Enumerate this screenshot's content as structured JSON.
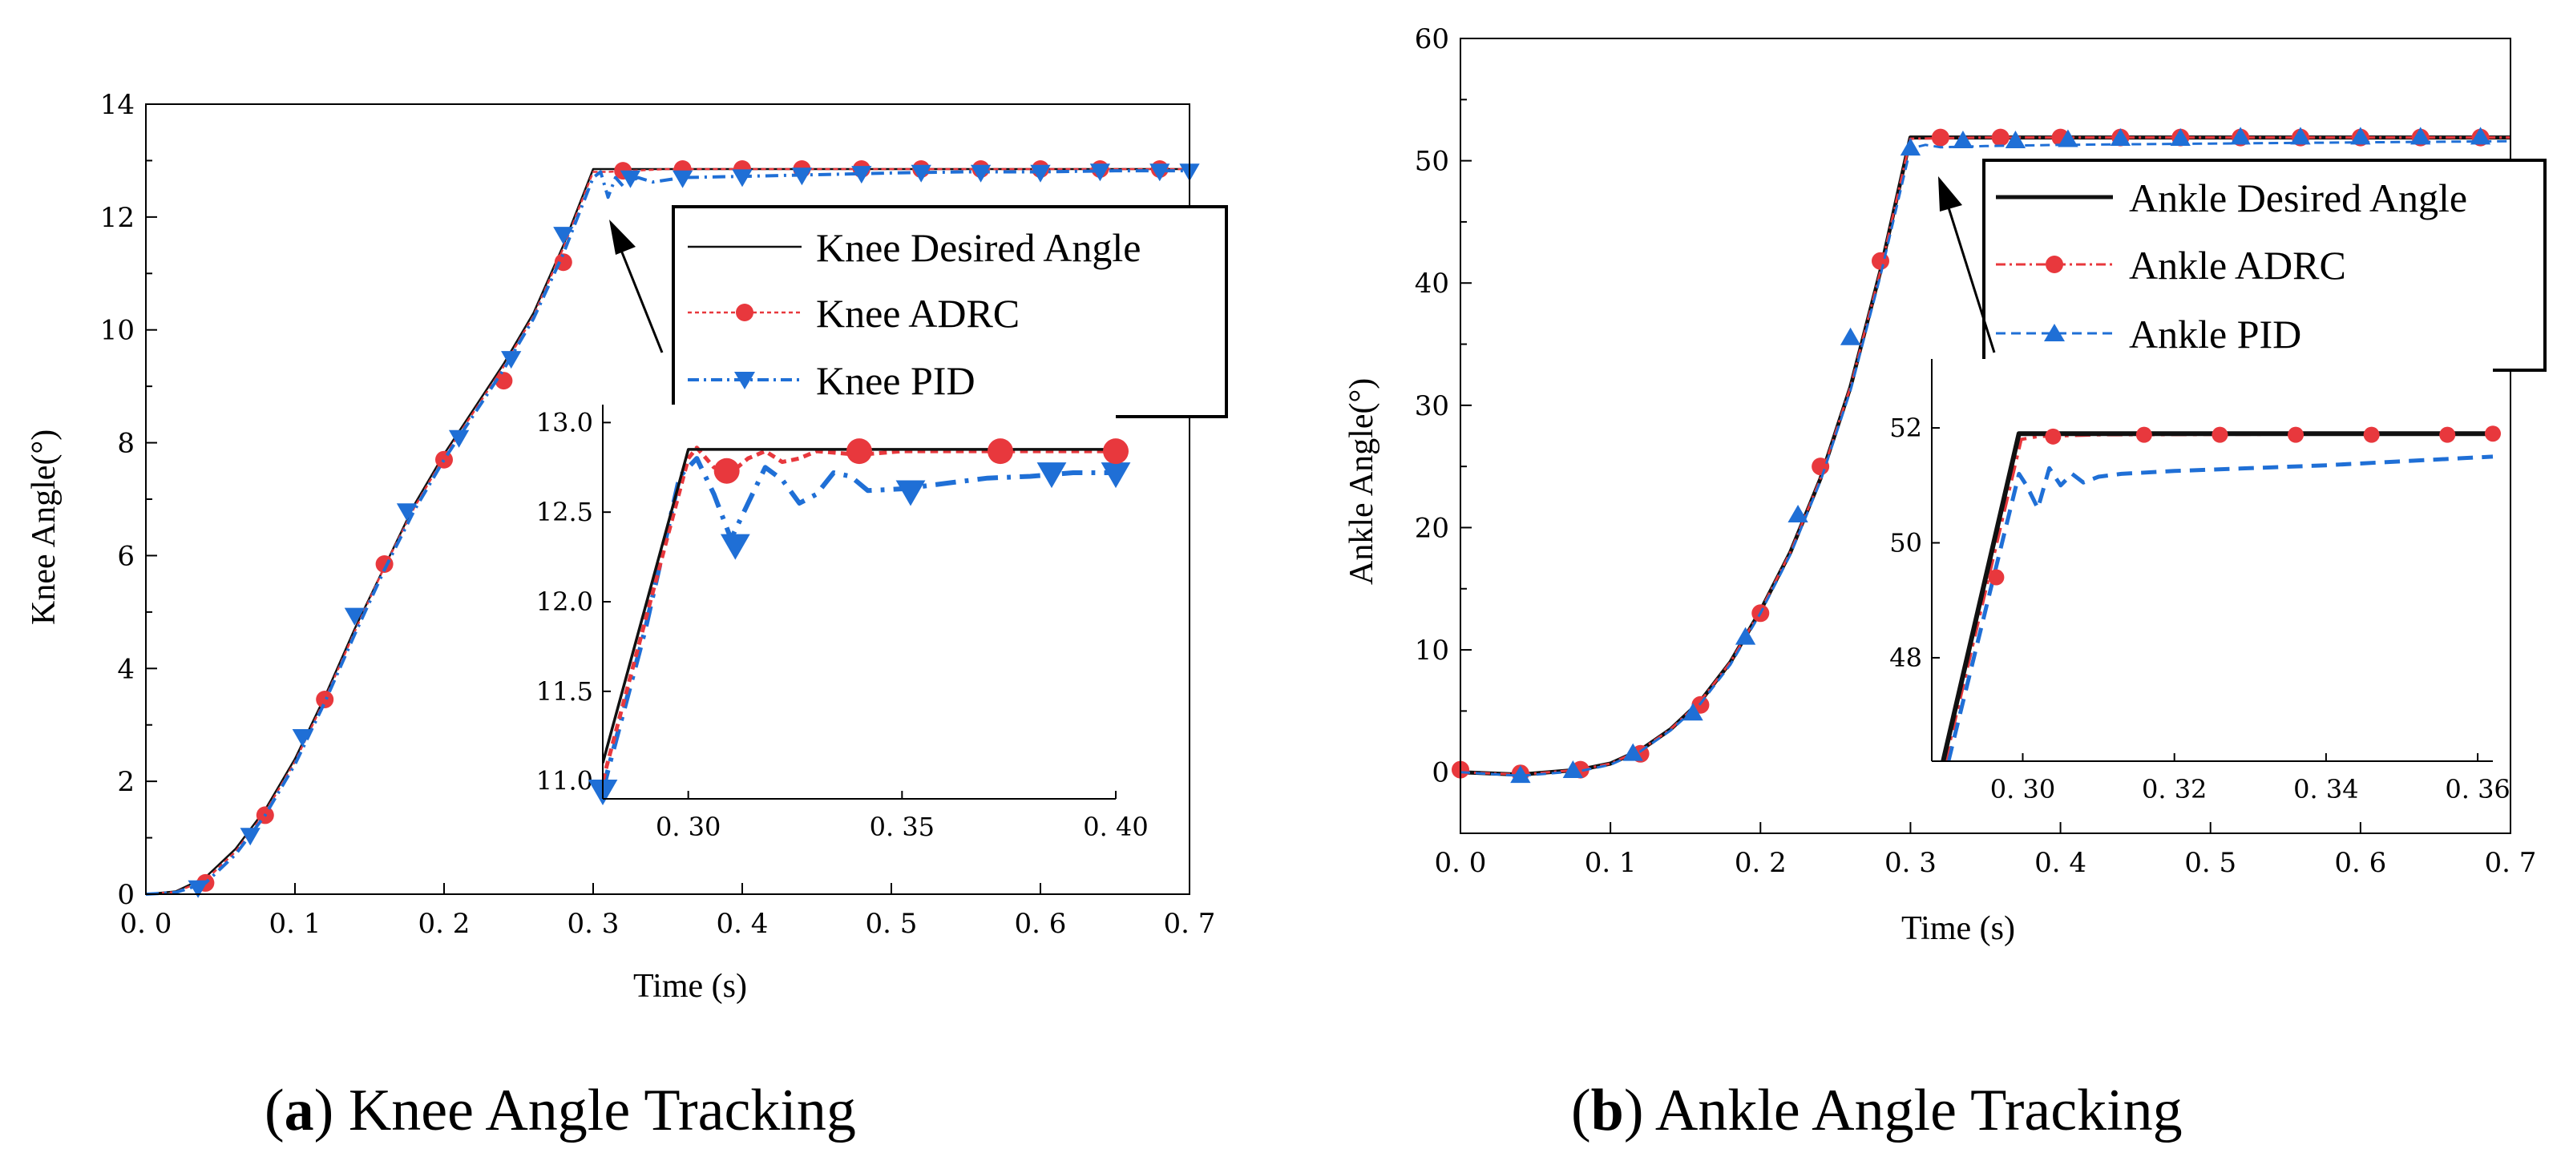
{
  "colors": {
    "desired": "#111111",
    "adrc": "#e8383d",
    "pid": "#1f6fd6"
  },
  "chart_data": [
    {
      "id": "a",
      "type": "line",
      "caption_letter": "a",
      "caption_text": "Knee Angle Tracking",
      "xlabel": "Time (s)",
      "ylabel": "Knee Angle(°)",
      "xlim": [
        0,
        0.7
      ],
      "ylim": [
        0,
        14
      ],
      "xticks": [
        0,
        0.1,
        0.2,
        0.3,
        0.4,
        0.5,
        0.6,
        0.7
      ],
      "xtick_labels": [
        "0.0",
        "0.1",
        "0.2",
        "0.3",
        "0.4",
        "0.5",
        "0.6",
        "0.7"
      ],
      "yticks": [
        0,
        2,
        4,
        6,
        8,
        10,
        12,
        14
      ],
      "ytick_labels": [
        "0",
        "2",
        "4",
        "6",
        "8",
        "10",
        "12",
        "14"
      ],
      "legend": [
        "Knee Desired Angle",
        "Knee ADRC",
        "Knee PID"
      ],
      "series": [
        {
          "name": "Knee Desired Angle",
          "style": "solid",
          "marker": "none",
          "x": [
            0,
            0.02,
            0.04,
            0.06,
            0.08,
            0.1,
            0.12,
            0.14,
            0.16,
            0.18,
            0.2,
            0.22,
            0.24,
            0.26,
            0.28,
            0.3,
            0.35,
            0.4,
            0.45,
            0.5,
            0.55,
            0.6,
            0.65,
            0.7
          ],
          "y": [
            0,
            0.05,
            0.3,
            0.8,
            1.5,
            2.4,
            3.5,
            4.7,
            5.8,
            6.9,
            7.8,
            8.6,
            9.4,
            10.3,
            11.5,
            12.85,
            12.85,
            12.85,
            12.85,
            12.85,
            12.85,
            12.85,
            12.85,
            12.85
          ]
        },
        {
          "name": "Knee ADRC",
          "style": "dotted",
          "marker": "circle",
          "x": [
            0,
            0.02,
            0.04,
            0.06,
            0.08,
            0.1,
            0.12,
            0.14,
            0.16,
            0.18,
            0.2,
            0.22,
            0.24,
            0.26,
            0.28,
            0.3,
            0.31,
            0.35,
            0.4,
            0.45,
            0.5,
            0.55,
            0.6,
            0.65,
            0.7
          ],
          "y": [
            0,
            0.04,
            0.25,
            0.75,
            1.45,
            2.35,
            3.45,
            4.65,
            5.8,
            6.85,
            7.75,
            8.55,
            9.35,
            10.25,
            11.45,
            12.8,
            12.8,
            12.85,
            12.85,
            12.85,
            12.85,
            12.85,
            12.85,
            12.85,
            12.85
          ],
          "markers_x": [
            0.04,
            0.08,
            0.12,
            0.16,
            0.2,
            0.24,
            0.28,
            0.32,
            0.36,
            0.4,
            0.44,
            0.48,
            0.52,
            0.56,
            0.6,
            0.64,
            0.68
          ],
          "markers_y": [
            0.2,
            1.4,
            3.45,
            5.85,
            7.7,
            9.1,
            11.2,
            12.82,
            12.85,
            12.85,
            12.85,
            12.85,
            12.85,
            12.85,
            12.85,
            12.85,
            12.85
          ]
        },
        {
          "name": "Knee PID",
          "style": "dashdot",
          "marker": "triangle-down",
          "x": [
            0,
            0.02,
            0.04,
            0.06,
            0.08,
            0.1,
            0.12,
            0.14,
            0.16,
            0.18,
            0.2,
            0.22,
            0.24,
            0.26,
            0.28,
            0.3,
            0.305,
            0.31,
            0.315,
            0.32,
            0.33,
            0.34,
            0.36,
            0.4,
            0.45,
            0.5,
            0.55,
            0.6,
            0.65,
            0.7
          ],
          "y": [
            0,
            0.03,
            0.2,
            0.7,
            1.4,
            2.3,
            3.4,
            4.6,
            5.75,
            6.8,
            7.7,
            8.5,
            9.3,
            10.2,
            11.35,
            12.7,
            12.8,
            12.35,
            12.7,
            12.55,
            12.7,
            12.62,
            12.7,
            12.72,
            12.75,
            12.78,
            12.8,
            12.8,
            12.82,
            12.82
          ],
          "markers_x": [
            0.035,
            0.07,
            0.105,
            0.14,
            0.175,
            0.21,
            0.245,
            0.28,
            0.325,
            0.36,
            0.4,
            0.44,
            0.48,
            0.52,
            0.56,
            0.6,
            0.64,
            0.68,
            0.7
          ],
          "markers_y": [
            0.12,
            1.05,
            2.8,
            4.95,
            6.8,
            8.1,
            9.5,
            11.7,
            12.7,
            12.7,
            12.72,
            12.75,
            12.78,
            12.8,
            12.8,
            12.8,
            12.82,
            12.82,
            12.82
          ]
        }
      ],
      "inset": {
        "xlim": [
          0.28,
          0.4
        ],
        "ylim": [
          10.9,
          13.1
        ],
        "xticks": [
          0.3,
          0.35,
          0.4
        ],
        "xtick_labels": [
          "0.30",
          "0.35",
          "0.40"
        ],
        "yticks": [
          11.0,
          11.5,
          12.0,
          12.5,
          13.0
        ],
        "ytick_labels": [
          "11.0",
          "11.5",
          "12.0",
          "12.5",
          "13.0"
        ],
        "series": [
          {
            "name": "Knee Desired Angle",
            "x": [
              0.28,
              0.3,
              0.4
            ],
            "y": [
              11.1,
              12.85,
              12.85
            ]
          },
          {
            "name": "Knee ADRC",
            "x": [
              0.28,
              0.29,
              0.3,
              0.302,
              0.306,
              0.31,
              0.314,
              0.318,
              0.322,
              0.326,
              0.33,
              0.34,
              0.35,
              0.4
            ],
            "y": [
              11.0,
              11.9,
              12.8,
              12.86,
              12.75,
              12.72,
              12.8,
              12.84,
              12.78,
              12.8,
              12.84,
              12.82,
              12.84,
              12.84
            ],
            "markers_x": [
              0.309,
              0.34,
              0.373,
              0.4
            ],
            "markers_y": [
              12.73,
              12.84,
              12.84,
              12.84
            ]
          },
          {
            "name": "Knee PID",
            "x": [
              0.28,
              0.29,
              0.298,
              0.302,
              0.306,
              0.31,
              0.314,
              0.318,
              0.322,
              0.326,
              0.33,
              0.334,
              0.338,
              0.342,
              0.35,
              0.36,
              0.37,
              0.38,
              0.39,
              0.4
            ],
            "y": [
              10.95,
              11.85,
              12.7,
              12.8,
              12.6,
              12.35,
              12.55,
              12.75,
              12.68,
              12.55,
              12.6,
              12.72,
              12.7,
              12.62,
              12.63,
              12.66,
              12.69,
              12.7,
              12.72,
              12.72
            ],
            "markers_x": [
              0.28,
              0.311,
              0.352,
              0.385,
              0.4
            ],
            "markers_y": [
              10.95,
              12.32,
              12.62,
              12.72,
              12.72
            ]
          }
        ]
      }
    },
    {
      "id": "b",
      "type": "line",
      "caption_letter": "b",
      "caption_text": "Ankle Angle Tracking",
      "xlabel": "Time (s)",
      "ylabel": "Ankle Angle(°)",
      "xlim": [
        0,
        0.7
      ],
      "ylim": [
        -5,
        60
      ],
      "xticks": [
        0,
        0.1,
        0.2,
        0.3,
        0.4,
        0.5,
        0.6,
        0.7
      ],
      "xtick_labels": [
        "0.0",
        "0.1",
        "0.2",
        "0.3",
        "0.4",
        "0.5",
        "0.6",
        "0.7"
      ],
      "yticks": [
        0,
        10,
        20,
        30,
        40,
        50,
        60
      ],
      "ytick_labels": [
        "0",
        "10",
        "20",
        "30",
        "40",
        "50",
        "60"
      ],
      "legend": [
        "Ankle Desired Angle",
        "Ankle ADRC",
        "Ankle PID"
      ],
      "series": [
        {
          "name": "Ankle Desired Angle",
          "style": "solid",
          "marker": "none",
          "x": [
            0,
            0.04,
            0.08,
            0.1,
            0.12,
            0.14,
            0.16,
            0.18,
            0.2,
            0.22,
            0.24,
            0.26,
            0.28,
            0.3,
            0.35,
            0.4,
            0.5,
            0.6,
            0.7
          ],
          "y": [
            0,
            -0.2,
            0.2,
            0.7,
            1.8,
            3.5,
            5.8,
            9.0,
            13.2,
            18.0,
            24.0,
            31.5,
            41.0,
            51.9,
            51.9,
            51.9,
            51.9,
            51.9,
            51.9
          ]
        },
        {
          "name": "Ankle ADRC",
          "style": "dashdot",
          "marker": "circle",
          "x": [
            0,
            0.04,
            0.08,
            0.1,
            0.12,
            0.14,
            0.16,
            0.18,
            0.2,
            0.22,
            0.24,
            0.26,
            0.28,
            0.3,
            0.35,
            0.4,
            0.5,
            0.6,
            0.7
          ],
          "y": [
            0,
            -0.2,
            0.2,
            0.7,
            1.8,
            3.5,
            5.8,
            9.0,
            13.2,
            18.0,
            24.0,
            31.5,
            41.0,
            51.8,
            51.9,
            51.9,
            51.9,
            51.9,
            51.9
          ],
          "markers_x": [
            0,
            0.04,
            0.08,
            0.12,
            0.16,
            0.2,
            0.24,
            0.28,
            0.32,
            0.36,
            0.4,
            0.44,
            0.48,
            0.52,
            0.56,
            0.6,
            0.64,
            0.68
          ],
          "markers_y": [
            0.2,
            -0.1,
            0.2,
            1.5,
            5.5,
            13.0,
            25.0,
            41.8,
            51.9,
            51.9,
            51.9,
            51.9,
            51.9,
            51.9,
            51.9,
            51.9,
            51.9,
            51.9
          ]
        },
        {
          "name": "Ankle PID",
          "style": "dashed",
          "marker": "triangle-up",
          "x": [
            0,
            0.04,
            0.08,
            0.1,
            0.12,
            0.14,
            0.16,
            0.18,
            0.2,
            0.22,
            0.24,
            0.26,
            0.28,
            0.3,
            0.31,
            0.32,
            0.35,
            0.4,
            0.5,
            0.6,
            0.7
          ],
          "y": [
            0,
            -0.3,
            0.1,
            0.6,
            1.7,
            3.4,
            5.6,
            8.8,
            13.0,
            17.8,
            23.8,
            31.2,
            40.6,
            51.0,
            51.3,
            51.1,
            51.2,
            51.3,
            51.4,
            51.5,
            51.6
          ],
          "markers_x": [
            0.04,
            0.075,
            0.115,
            0.155,
            0.19,
            0.225,
            0.26,
            0.3,
            0.335,
            0.37,
            0.405,
            0.44,
            0.48,
            0.52,
            0.56,
            0.6,
            0.64,
            0.68
          ],
          "markers_y": [
            -0.3,
            0.1,
            1.5,
            4.8,
            11.0,
            21.0,
            35.5,
            51.0,
            51.6,
            51.6,
            51.7,
            51.8,
            51.8,
            51.9,
            51.9,
            51.9,
            51.9,
            51.9
          ]
        }
      ],
      "inset": {
        "xlim": [
          0.288,
          0.362
        ],
        "ylim": [
          46.2,
          53.2
        ],
        "xticks": [
          0.3,
          0.32,
          0.34,
          0.36
        ],
        "xtick_labels": [
          "0. 30",
          "0. 32",
          "0. 34",
          "0. 36"
        ],
        "yticks": [
          48,
          50,
          52
        ],
        "ytick_labels": [
          "48",
          "50",
          "52"
        ],
        "series": [
          {
            "name": "Ankle Desired Angle",
            "x": [
              0.2895,
              0.2995,
              0.362
            ],
            "y": [
              46.2,
              51.9,
              51.9
            ]
          },
          {
            "name": "Ankle ADRC",
            "x": [
              0.2898,
              0.2998,
              0.302,
              0.31,
              0.362
            ],
            "y": [
              46.2,
              51.8,
              51.85,
              51.88,
              51.9
            ],
            "markers_x": [
              0.2965,
              0.304,
              0.316,
              0.326,
              0.336,
              0.346,
              0.356,
              0.362
            ],
            "markers_y": [
              49.4,
              51.85,
              51.88,
              51.88,
              51.88,
              51.88,
              51.88,
              51.9
            ]
          },
          {
            "name": "Ankle PID",
            "x": [
              0.2902,
              0.2995,
              0.3005,
              0.302,
              0.3035,
              0.305,
              0.3065,
              0.308,
              0.31,
              0.313,
              0.32,
              0.33,
              0.34,
              0.35,
              0.362
            ],
            "y": [
              46.2,
              51.2,
              51.0,
              50.6,
              51.3,
              51.0,
              51.2,
              51.05,
              51.15,
              51.2,
              51.25,
              51.3,
              51.35,
              51.42,
              51.5
            ]
          }
        ]
      }
    }
  ]
}
